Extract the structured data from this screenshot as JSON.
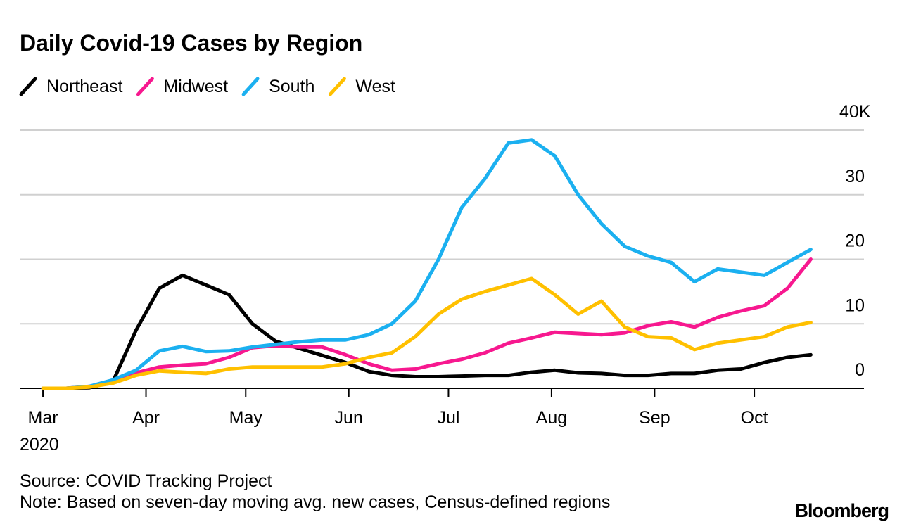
{
  "chart_data": {
    "type": "line",
    "title": "Daily Covid-19 Cases by Region",
    "x": [
      0,
      7,
      14,
      21,
      28,
      35,
      42,
      49,
      56,
      63,
      70,
      77,
      84,
      91,
      98,
      105,
      112,
      119,
      126,
      133,
      140,
      147,
      154,
      161,
      168,
      175,
      182,
      189,
      196,
      203,
      210,
      217,
      224,
      231
    ],
    "xlim": [
      -7,
      247
    ],
    "xticks": [
      {
        "value": 0,
        "label": "Mar"
      },
      {
        "value": 31,
        "label": "Apr"
      },
      {
        "value": 61,
        "label": "May"
      },
      {
        "value": 92,
        "label": "Jun"
      },
      {
        "value": 122,
        "label": "Jul"
      },
      {
        "value": 153,
        "label": "Aug"
      },
      {
        "value": 184,
        "label": "Sep"
      },
      {
        "value": 214,
        "label": "Oct"
      }
    ],
    "year_label": "2020",
    "ylim": [
      0,
      40
    ],
    "yticks": [
      0,
      10,
      20,
      30,
      {
        "value": 40,
        "label": "40K"
      }
    ],
    "grid": true,
    "series": [
      {
        "name": "Northeast",
        "color": "#000000",
        "values": [
          0,
          0,
          0.1,
          1,
          9,
          15.5,
          17.5,
          16,
          14.5,
          10,
          7.3,
          6.2,
          5.1,
          4,
          2.6,
          2,
          1.8,
          1.8,
          1.9,
          2,
          2,
          2.5,
          2.8,
          2.4,
          2.3,
          2,
          2,
          2.3,
          2.3,
          2.8,
          3,
          4,
          4.8,
          5.2
        ]
      },
      {
        "name": "Midwest",
        "color": "#f7188f",
        "values": [
          0,
          0,
          0.3,
          1,
          2.4,
          3.3,
          3.6,
          3.8,
          4.8,
          6.3,
          6.6,
          6.4,
          6.4,
          5.2,
          3.8,
          2.8,
          3,
          3.8,
          4.5,
          5.5,
          7,
          7.8,
          8.7,
          8.5,
          8.3,
          8.6,
          9.7,
          10.3,
          9.5,
          11,
          12,
          12.8,
          15.5,
          20
        ]
      },
      {
        "name": "South",
        "color": "#1bb0f0",
        "values": [
          0,
          0,
          0.3,
          1.3,
          2.8,
          5.8,
          6.5,
          5.7,
          5.8,
          6.4,
          6.8,
          7.2,
          7.5,
          7.5,
          8.3,
          10,
          13.5,
          20,
          28,
          32.5,
          38,
          38.5,
          36,
          30,
          25.5,
          22,
          20.5,
          19.5,
          16.5,
          18.5,
          18,
          17.5,
          19.5,
          21.5
        ]
      },
      {
        "name": "West",
        "color": "#ffc000",
        "values": [
          0,
          0,
          0.2,
          0.8,
          2,
          2.7,
          2.5,
          2.3,
          3,
          3.3,
          3.3,
          3.3,
          3.3,
          3.8,
          4.8,
          5.5,
          8,
          11.5,
          13.8,
          15,
          16,
          17,
          14.5,
          11.5,
          13.5,
          9.5,
          8,
          7.8,
          6,
          7,
          7.5,
          8,
          9.5,
          10.2
        ]
      }
    ],
    "source": "Source: COVID Tracking Project",
    "note": "Note: Based on seven-day moving avg. new cases, Census-defined regions",
    "brand": "Bloomberg"
  }
}
